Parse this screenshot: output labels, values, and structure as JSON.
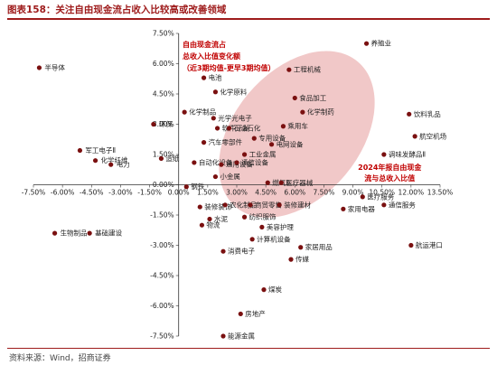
{
  "header": {
    "title": "图表158：关注自由现金流占收入比较高或改善领域"
  },
  "footer": {
    "source": "资料来源：Wind，招商证券"
  },
  "chart_data": {
    "type": "scatter",
    "xlim": [
      -7.5,
      13.5
    ],
    "ylim": [
      -7.5,
      7.5
    ],
    "x_ticks": [
      "-7.50%",
      "-6.00%",
      "-4.50%",
      "-3.00%",
      "-1.50%",
      "0.00%",
      "1.50%",
      "3.00%",
      "4.50%",
      "6.00%",
      "7.50%",
      "9.00%",
      "10.50%",
      "12.00%",
      "13.50%"
    ],
    "y_ticks": [
      "7.50%",
      "6.00%",
      "4.50%",
      "3.00%",
      "1.50%",
      "0.00%",
      "-1.50%",
      "-3.00%",
      "-4.50%",
      "-6.00%",
      "-7.50%"
    ],
    "annotations": {
      "y_axis_note": [
        "自由现金流占",
        "总收入比值变化额",
        "（近3期均值-更早3期均值）"
      ],
      "x_axis_note": [
        "2024年报自由现金",
        "流与总收入比值"
      ]
    },
    "marker_color": "#7a1010",
    "ellipse_color": "#e8a4a4",
    "points": [
      {
        "name": "半导体",
        "x": -7.2,
        "y": 5.8
      },
      {
        "name": "军工电子Ⅱ",
        "x": -5.1,
        "y": 1.7
      },
      {
        "name": "化学纤维",
        "x": -4.3,
        "y": 1.2
      },
      {
        "name": "电力",
        "x": -3.5,
        "y": 1.0
      },
      {
        "name": "生物制品",
        "x": -6.4,
        "y": -2.4
      },
      {
        "name": "基础建设",
        "x": -4.6,
        "y": -2.4
      },
      {
        "name": "环保",
        "x": -1.3,
        "y": 3.0
      },
      {
        "name": "造纸",
        "x": -0.9,
        "y": 1.3
      },
      {
        "name": "电池",
        "x": 1.3,
        "y": 5.3
      },
      {
        "name": "化学原料",
        "x": 1.9,
        "y": 4.6
      },
      {
        "name": "化学制品",
        "x": 0.3,
        "y": 3.6
      },
      {
        "name": "光学光电子",
        "x": 1.8,
        "y": 3.3
      },
      {
        "name": "软件开发",
        "x": 2.0,
        "y": 2.8
      },
      {
        "name": "石油石化",
        "x": 2.6,
        "y": 2.8
      },
      {
        "name": "汽车零部件",
        "x": 1.3,
        "y": 2.1
      },
      {
        "name": "自动化设备",
        "x": 0.8,
        "y": 1.1
      },
      {
        "name": "通用设备",
        "x": 2.2,
        "y": 1.0
      },
      {
        "name": "小金属",
        "x": 1.9,
        "y": 0.4
      },
      {
        "name": "专用设备",
        "x": 3.9,
        "y": 2.3
      },
      {
        "name": "电网设备",
        "x": 4.8,
        "y": 2.0
      },
      {
        "name": "工业金属",
        "x": 3.4,
        "y": 1.5
      },
      {
        "name": "通信设备",
        "x": 3.0,
        "y": 1.1
      },
      {
        "name": "燃气Ⅱ",
        "x": 4.6,
        "y": 0.1
      },
      {
        "name": "医疗器械",
        "x": 5.3,
        "y": 0.1
      },
      {
        "name": "工程机械",
        "x": 5.7,
        "y": 5.7
      },
      {
        "name": "食品加工",
        "x": 6.0,
        "y": 4.3
      },
      {
        "name": "化学制药",
        "x": 6.4,
        "y": 3.6
      },
      {
        "name": "乘用车",
        "x": 5.4,
        "y": 2.9
      },
      {
        "name": "养殖业",
        "x": 9.7,
        "y": 7.0
      },
      {
        "name": "饮料乳品",
        "x": 11.9,
        "y": 3.5
      },
      {
        "name": "航空机场",
        "x": 12.2,
        "y": 2.4
      },
      {
        "name": "调味发酵品Ⅱ",
        "x": 10.6,
        "y": 1.5
      },
      {
        "name": "钢铁",
        "x": 0.4,
        "y": -0.1
      },
      {
        "name": "装修装饰",
        "x": 1.1,
        "y": -1.1
      },
      {
        "name": "农化制品",
        "x": 2.4,
        "y": -1.0
      },
      {
        "name": "商贸零售",
        "x": 3.7,
        "y": -1.0
      },
      {
        "name": "装修建材",
        "x": 5.2,
        "y": -1.0
      },
      {
        "name": "水泥",
        "x": 1.6,
        "y": -1.7
      },
      {
        "name": "物流",
        "x": 1.2,
        "y": -2.0
      },
      {
        "name": "纺织服饰",
        "x": 3.4,
        "y": -1.6
      },
      {
        "name": "美容护理",
        "x": 4.3,
        "y": -2.1
      },
      {
        "name": "医疗服务",
        "x": 9.5,
        "y": -0.6
      },
      {
        "name": "家用电器",
        "x": 8.5,
        "y": -1.2
      },
      {
        "name": "通信服务",
        "x": 10.6,
        "y": -1.0
      },
      {
        "name": "计算机设备",
        "x": 3.8,
        "y": -2.7
      },
      {
        "name": "消费电子",
        "x": 2.3,
        "y": -3.3
      },
      {
        "name": "家居用品",
        "x": 6.3,
        "y": -3.1
      },
      {
        "name": "传媒",
        "x": 5.8,
        "y": -3.7
      },
      {
        "name": "航运港口",
        "x": 12.0,
        "y": -3.0
      },
      {
        "name": "煤炭",
        "x": 4.4,
        "y": -5.2
      },
      {
        "name": "房地产",
        "x": 3.2,
        "y": -6.4
      },
      {
        "name": "能源金属",
        "x": 2.3,
        "y": -7.5
      }
    ]
  }
}
